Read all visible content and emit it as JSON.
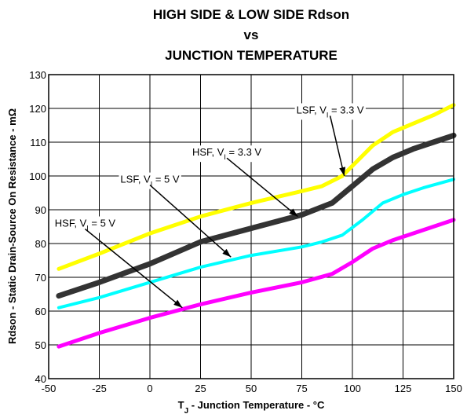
{
  "chart_data": {
    "type": "line",
    "title": [
      "HIGH SIDE & LOW SIDE Rdson",
      "vs",
      "JUNCTION TEMPERATURE"
    ],
    "xlabel_main": "T",
    "xlabel_sub": "J",
    "xlabel_rest": " - Junction Temperature - °C",
    "ylabel": "Rdson - Static Drain-Source On Resistance - mΩ",
    "xlim": [
      -50,
      150
    ],
    "ylim": [
      40,
      130
    ],
    "xticks": [
      -50,
      -25,
      0,
      25,
      50,
      75,
      100,
      125,
      150
    ],
    "yticks": [
      40,
      50,
      60,
      70,
      80,
      90,
      100,
      110,
      120,
      130
    ],
    "grid": true,
    "series": [
      {
        "name": "LSF, VI = 3.3 V",
        "color": "#ffff00",
        "width": 5,
        "x": [
          -45,
          -25,
          0,
          25,
          50,
          75,
          85,
          95,
          100,
          110,
          120,
          130,
          140,
          150
        ],
        "y": [
          72.5,
          77,
          83,
          88,
          92,
          95.5,
          97,
          100,
          103,
          109,
          113,
          115.5,
          118,
          121
        ]
      },
      {
        "name": "HSF, VI = 3.3 V",
        "color": "#333333",
        "width": 7,
        "x": [
          -45,
          -25,
          0,
          25,
          50,
          75,
          90,
          100,
          110,
          120,
          130,
          140,
          150
        ],
        "y": [
          64.5,
          68.5,
          74,
          80.5,
          84.5,
          88.5,
          92,
          97,
          102,
          105.5,
          108,
          110,
          112
        ]
      },
      {
        "name": "LSF, VI = 5 V",
        "color": "#00ffff",
        "width": 4,
        "x": [
          -45,
          -25,
          0,
          25,
          50,
          75,
          85,
          95,
          105,
          115,
          125,
          135,
          150
        ],
        "y": [
          61,
          64,
          68.5,
          73,
          76.5,
          79,
          80.5,
          82.5,
          87,
          92,
          94.5,
          96.5,
          99
        ]
      },
      {
        "name": "HSF, VI = 5 V",
        "color": "#ff00ff",
        "width": 5,
        "x": [
          -45,
          -25,
          0,
          25,
          50,
          75,
          90,
          100,
          110,
          120,
          130,
          140,
          150
        ],
        "y": [
          49.5,
          53.5,
          58,
          62,
          65.5,
          68.5,
          71,
          74.5,
          78.5,
          81,
          83,
          85,
          87
        ]
      }
    ],
    "annotations": [
      {
        "main": "LSF, V",
        "sub": "I",
        "rest": " = 3.3 V",
        "tx": 89,
        "ty": 118.5,
        "ax": 96,
        "ay": 100
      },
      {
        "main": "HSF, V",
        "sub": "I",
        "rest": " = 3.3 V",
        "tx": 38,
        "ty": 106,
        "ax": 73,
        "ay": 88
      },
      {
        "main": "LSF, V",
        "sub": "I",
        "rest": " = 5 V",
        "tx": 0,
        "ty": 98,
        "ax": 40,
        "ay": 76
      },
      {
        "main": "HSF, V",
        "sub": "I",
        "rest": " = 5 V",
        "tx": -32,
        "ty": 85,
        "ax": 16,
        "ay": 61
      }
    ]
  }
}
